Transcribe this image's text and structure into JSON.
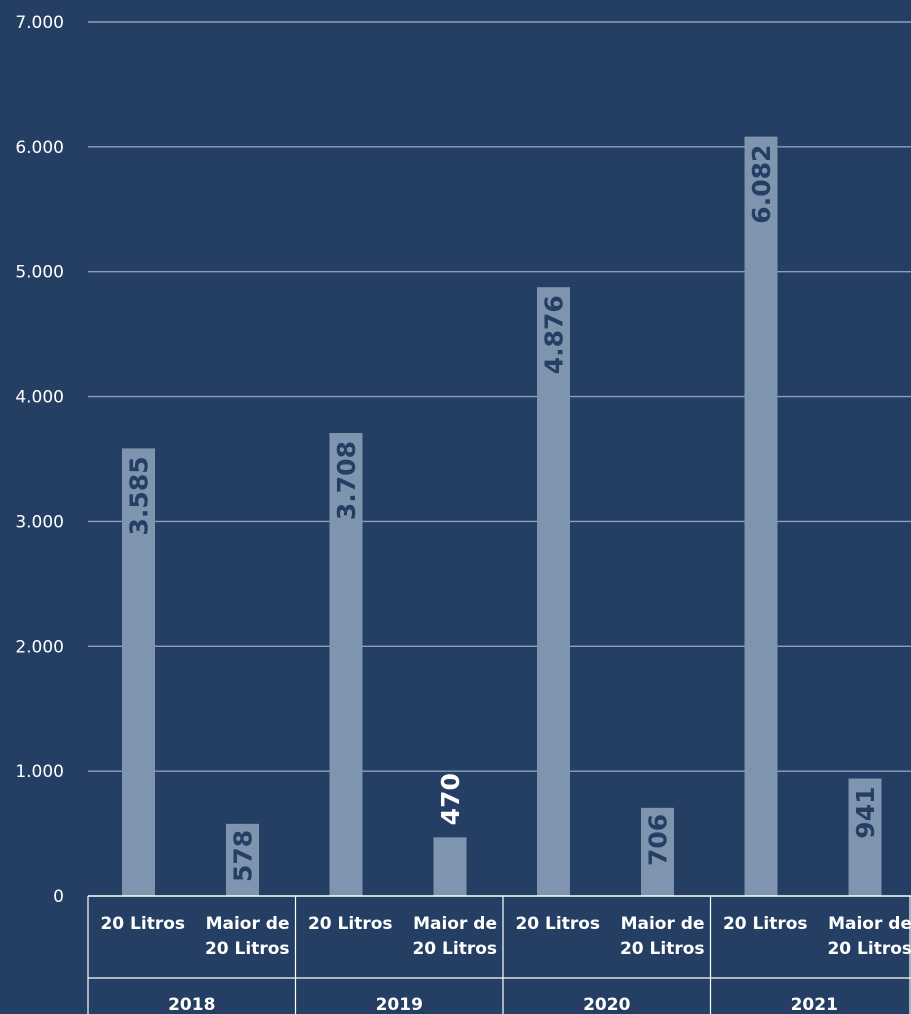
{
  "colors": {
    "background": "#243f63",
    "bar": "#7f94ae",
    "grid": "#8ea0b8",
    "label_inside": "#243f63",
    "label_outside": "#ffffff",
    "text": "#ffffff"
  },
  "chart_data": {
    "type": "bar",
    "title": "",
    "xlabel": "",
    "ylabel": "",
    "ylim": [
      0,
      7000
    ],
    "y_ticks": [
      0,
      1000,
      2000,
      3000,
      4000,
      5000,
      6000,
      7000
    ],
    "y_tick_labels": [
      "0",
      "1.000",
      "2.000",
      "3.000",
      "4.000",
      "5.000",
      "6.000",
      "7.000"
    ],
    "grid": true,
    "legend": "none",
    "groups": [
      {
        "year": "2018",
        "bars": [
          {
            "category": [
              "20 Litros"
            ],
            "value": 3585,
            "label": "3.585"
          },
          {
            "category": [
              "Maior de",
              "20 Litros"
            ],
            "value": 578,
            "label": "578"
          }
        ]
      },
      {
        "year": "2019",
        "bars": [
          {
            "category": [
              "20 Litros"
            ],
            "value": 3708,
            "label": "3.708"
          },
          {
            "category": [
              "Maior de",
              "20 Litros"
            ],
            "value": 470,
            "label": "470"
          }
        ]
      },
      {
        "year": "2020",
        "bars": [
          {
            "category": [
              "20 Litros"
            ],
            "value": 4876,
            "label": "4.876"
          },
          {
            "category": [
              "Maior de",
              "20 Litros"
            ],
            "value": 706,
            "label": "706"
          }
        ]
      },
      {
        "year": "2021",
        "bars": [
          {
            "category": [
              "20 Litros"
            ],
            "value": 6082,
            "label": "6.082"
          },
          {
            "category": [
              "Maior de",
              "20 Litros"
            ],
            "value": 941,
            "label": "941"
          }
        ]
      }
    ]
  }
}
